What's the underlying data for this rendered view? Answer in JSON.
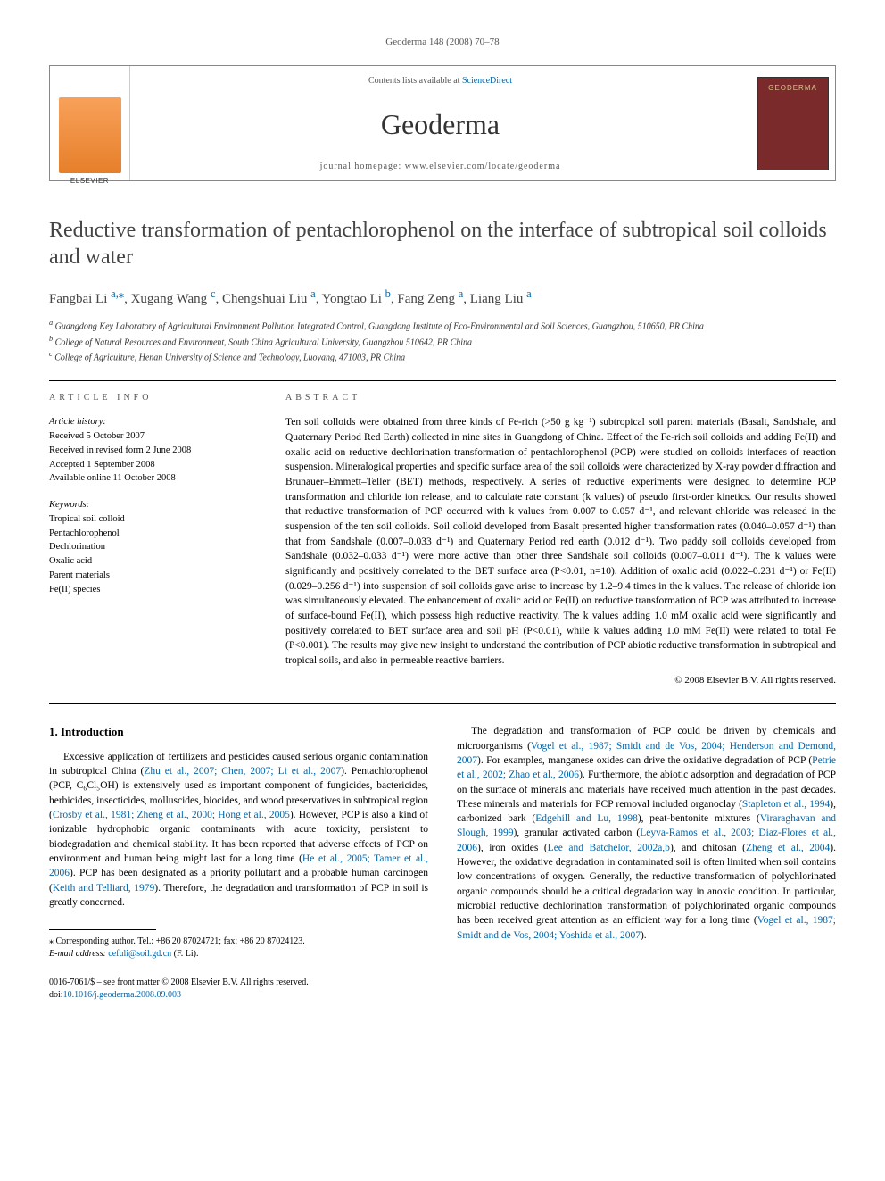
{
  "header": {
    "running_head": "Geoderma 148 (2008) 70–78"
  },
  "banner": {
    "contents_prefix": "Contents lists available at ",
    "contents_link": "ScienceDirect",
    "journal": "Geoderma",
    "homepage_prefix": "journal homepage: ",
    "homepage_url": "www.elsevier.com/locate/geoderma",
    "publisher_logo_alt": "Elsevier",
    "cover_alt": "Geoderma journal cover"
  },
  "article": {
    "title": "Reductive transformation of pentachlorophenol on the interface of subtropical soil colloids and water",
    "authors_html": "Fangbai Li <sup><a>a,</a></sup><a><sup>⁎</sup></a>, Xugang Wang <sup><a>c</a></sup>, Chengshuai Liu <sup><a>a</a></sup>, Yongtao Li <sup><a>b</a></sup>, Fang Zeng <sup><a>a</a></sup>, Liang Liu <sup><a>a</a></sup>",
    "affiliations": {
      "a": "Guangdong Key Laboratory of Agricultural Environment Pollution Integrated Control, Guangdong Institute of Eco-Environmental and Soil Sciences, Guangzhou, 510650, PR China",
      "b": "College of Natural Resources and Environment, South China Agricultural University, Guangzhou 510642, PR China",
      "c": "College of Agriculture, Henan University of Science and Technology, Luoyang, 471003, PR China"
    }
  },
  "info": {
    "section_label": "ARTICLE INFO",
    "history_label": "Article history:",
    "history": [
      "Received 5 October 2007",
      "Received in revised form 2 June 2008",
      "Accepted 1 September 2008",
      "Available online 11 October 2008"
    ],
    "keywords_label": "Keywords:",
    "keywords": [
      "Tropical soil colloid",
      "Pentachlorophenol",
      "Dechlorination",
      "Oxalic acid",
      "Parent materials",
      "Fe(II) species"
    ]
  },
  "abstract": {
    "section_label": "ABSTRACT",
    "text": "Ten soil colloids were obtained from three kinds of Fe-rich (>50 g kg⁻¹) subtropical soil parent materials (Basalt, Sandshale, and Quaternary Period Red Earth) collected in nine sites in Guangdong of China. Effect of the Fe-rich soil colloids and adding Fe(II) and oxalic acid on reductive dechlorination transformation of pentachlorophenol (PCP) were studied on colloids interfaces of reaction suspension. Mineralogical properties and specific surface area of the soil colloids were characterized by X-ray powder diffraction and Brunauer–Emmett–Teller (BET) methods, respectively. A series of reductive experiments were designed to determine PCP transformation and chloride ion release, and to calculate rate constant (k values) of pseudo first-order kinetics. Our results showed that reductive transformation of PCP occurred with k values from 0.007 to 0.057 d⁻¹, and relevant chloride was released in the suspension of the ten soil colloids. Soil colloid developed from Basalt presented higher transformation rates (0.040–0.057 d⁻¹) than that from Sandshale (0.007–0.033 d⁻¹) and Quaternary Period red earth (0.012 d⁻¹). Two paddy soil colloids developed from Sandshale (0.032–0.033 d⁻¹) were more active than other three Sandshale soil colloids (0.007–0.011 d⁻¹). The k values were significantly and positively correlated to the BET surface area (P<0.01, n=10). Addition of oxalic acid (0.022–0.231 d⁻¹) or Fe(II) (0.029–0.256 d⁻¹) into suspension of soil colloids gave arise to increase by 1.2–9.4 times in the k values. The release of chloride ion was simultaneously elevated. The enhancement of oxalic acid or Fe(II) on reductive transformation of PCP was attributed to increase of surface-bound Fe(II), which possess high reductive reactivity. The k values adding 1.0 mM oxalic acid were significantly and positively correlated to BET surface area and soil pH (P<0.01), while k values adding 1.0 mM Fe(II) were related to total Fe (P<0.001). The results may give new insight to understand the contribution of PCP abiotic reductive transformation in subtropical and tropical soils, and also in permeable reactive barriers.",
    "copyright": "© 2008 Elsevier B.V. All rights reserved."
  },
  "body": {
    "section_heading": "1. Introduction",
    "col1_html": "Excessive application of fertilizers and pesticides caused serious organic contamination in subtropical China (<a>Zhu et al., 2007; Chen, 2007; Li et al., 2007</a>). Pentachlorophenol (PCP, C₆Cl₅OH) is extensively used as important component of fungicides, bactericides, herbicides, insecticides, molluscides, biocides, and wood preservatives in subtropical region (<a>Crosby et al., 1981; Zheng et al., 2000; Hong et al., 2005</a>). However, PCP is also a kind of ionizable hydrophobic organic contaminants with acute toxicity, persistent to biodegradation and chemical stability. It has been reported that adverse effects of PCP on environment and human being might last for a long time (<a>He et al., 2005; Tamer et al., 2006</a>). PCP has been designated as a priority pollutant and a probable human carcinogen (<a>Keith and Telliard, 1979</a>). Therefore, the degradation and transformation of PCP in soil is greatly concerned.",
    "col2_html": "The degradation and transformation of PCP could be driven by chemicals and microorganisms (<a>Vogel et al., 1987; Smidt and de Vos, 2004; Henderson and Demond, 2007</a>). For examples, manganese oxides can drive the oxidative degradation of PCP (<a>Petrie et al., 2002; Zhao et al., 2006</a>). Furthermore, the abiotic adsorption and degradation of PCP on the surface of minerals and materials have received much attention in the past decades. These minerals and materials for PCP removal included organoclay (<a>Stapleton et al., 1994</a>), carbonized bark (<a>Edgehill and Lu, 1998</a>), peat-bentonite mixtures (<a>Viraraghavan and Slough, 1999</a>), granular activated carbon (<a>Leyva-Ramos et al., 2003; Diaz-Flores et al., 2006</a>), iron oxides (<a>Lee and Batchelor, 2002a,b</a>), and chitosan (<a>Zheng et al., 2004</a>). However, the oxidative degradation in contaminated soil is often limited when soil contains low concentrations of oxygen. Generally, the reductive transformation of polychlorinated organic compounds should be a critical degradation way in anoxic condition. In particular, microbial reductive dechlorination transformation of polychlorinated organic compounds has been received great attention as an efficient way for a long time (<a>Vogel et al., 1987; Smidt and de Vos, 2004; Yoshida et al., 2007</a>)."
  },
  "footnote": {
    "corresponding": "⁎ Corresponding author. Tel.: +86 20 87024721; fax: +86 20 87024123.",
    "email_label": "E-mail address:",
    "email": "cefuli@soil.gd.cn",
    "email_name": "(F. Li)."
  },
  "footer": {
    "line1": "0016-7061/$ – see front matter © 2008 Elsevier B.V. All rights reserved.",
    "doi_prefix": "doi:",
    "doi": "10.1016/j.geoderma.2008.09.003"
  },
  "colors": {
    "link": "#0066aa",
    "text": "#000000",
    "heading_gray": "#444444"
  }
}
